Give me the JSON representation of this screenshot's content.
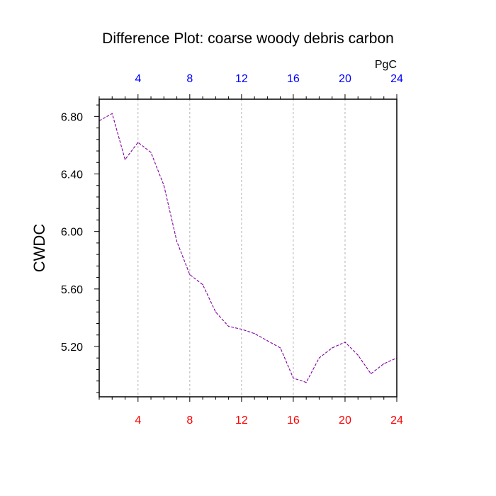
{
  "chart_data": {
    "type": "line",
    "title": "Difference Plot: coarse woody debris carbon",
    "ylabel": "CWDC",
    "unit_label": "PgC",
    "xlim": [
      1,
      24
    ],
    "ylim": [
      4.85,
      6.92
    ],
    "x_ticks": [
      4,
      8,
      12,
      16,
      20,
      24
    ],
    "y_ticks": [
      5.2,
      5.6,
      6.0,
      6.4,
      6.8
    ],
    "y_tick_labels": [
      "5.20",
      "5.60",
      "6.00",
      "6.40",
      "6.80"
    ],
    "top_axis_color": "#0000ff",
    "bottom_axis_color": "#ff0000",
    "grid": "vertical dashed at major x ticks",
    "series": [
      {
        "color": "#8000a0",
        "line_style": "dashed",
        "x": [
          1,
          2,
          3,
          4,
          5,
          6,
          7,
          8,
          9,
          10,
          11,
          12,
          13,
          14,
          15,
          16,
          17,
          18,
          19,
          20,
          21,
          22,
          23,
          24
        ],
        "values": [
          6.77,
          6.82,
          6.5,
          6.62,
          6.55,
          6.32,
          5.93,
          5.7,
          5.63,
          5.44,
          5.34,
          5.32,
          5.29,
          5.24,
          5.19,
          4.98,
          4.95,
          5.12,
          5.19,
          5.23,
          5.14,
          5.01,
          5.08,
          5.12
        ]
      }
    ]
  }
}
